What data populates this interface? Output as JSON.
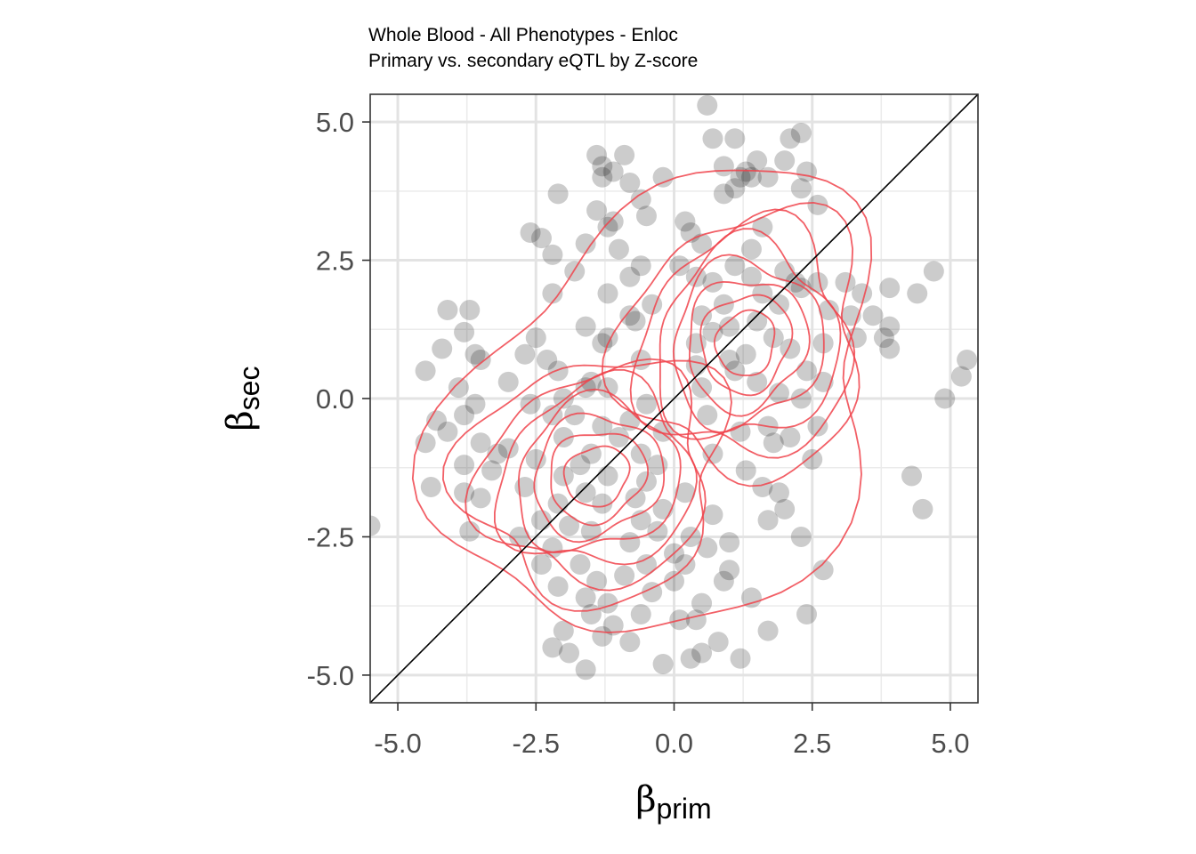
{
  "chart_data": {
    "type": "scatter",
    "title": "Whole Blood - All Phenotypes - Enloc",
    "subtitle": "Primary vs. secondary eQTL by Z-score",
    "xlabel": {
      "symbol": "β",
      "subscript": "prim"
    },
    "ylabel": {
      "symbol": "β",
      "subscript": "sec"
    },
    "xlim": [
      -5.5,
      5.5
    ],
    "ylim": [
      -5.5,
      5.5
    ],
    "xticks": [
      "-5.0",
      "-2.5",
      "0.0",
      "2.5",
      "5.0"
    ],
    "yticks": [
      "5.0",
      "2.5",
      "0.0",
      "-2.5",
      "-5.0"
    ],
    "grid": true,
    "reference_line": "y = x",
    "point_color": "#000000",
    "point_opacity": 0.2,
    "contour_color": "#f0434b",
    "density_contours": {
      "centers": [
        [
          -1.4,
          -1.4
        ],
        [
          1.3,
          1.0
        ]
      ],
      "levels": 7
    },
    "points": [
      [
        0.6,
        5.3
      ],
      [
        0.7,
        4.7
      ],
      [
        1.1,
        4.7
      ],
      [
        2.1,
        4.7
      ],
      [
        2.3,
        4.8
      ],
      [
        -1.4,
        4.4
      ],
      [
        -0.9,
        4.4
      ],
      [
        1.5,
        4.3
      ],
      [
        -1.3,
        4.2
      ],
      [
        -1.1,
        4.1
      ],
      [
        0.9,
        4.2
      ],
      [
        1.3,
        4.1
      ],
      [
        2.0,
        4.3
      ],
      [
        -1.3,
        4.0
      ],
      [
        -0.2,
        4.0
      ],
      [
        1.2,
        4.0
      ],
      [
        1.4,
        4.0
      ],
      [
        2.4,
        4.1
      ],
      [
        -0.8,
        3.9
      ],
      [
        1.1,
        3.8
      ],
      [
        1.7,
        4.0
      ],
      [
        -2.1,
        3.7
      ],
      [
        2.3,
        3.8
      ],
      [
        -0.6,
        3.6
      ],
      [
        -1.4,
        3.4
      ],
      [
        -0.5,
        3.3
      ],
      [
        0.9,
        3.7
      ],
      [
        2.6,
        3.5
      ],
      [
        -1.2,
        3.1
      ],
      [
        -1.1,
        3.2
      ],
      [
        0.2,
        3.2
      ],
      [
        0.3,
        3.0
      ],
      [
        1.6,
        3.1
      ],
      [
        -2.6,
        3.0
      ],
      [
        -2.4,
        2.9
      ],
      [
        -1.6,
        2.8
      ],
      [
        -1.0,
        2.7
      ],
      [
        0.5,
        2.8
      ],
      [
        1.4,
        2.7
      ],
      [
        -2.2,
        2.6
      ],
      [
        -0.6,
        2.4
      ],
      [
        0.1,
        2.4
      ],
      [
        1.1,
        2.4
      ],
      [
        -1.8,
        2.3
      ],
      [
        -0.8,
        2.2
      ],
      [
        0.4,
        2.2
      ],
      [
        0.7,
        2.1
      ],
      [
        1.4,
        2.2
      ],
      [
        2.0,
        2.3
      ],
      [
        2.2,
        2.1
      ],
      [
        2.6,
        2.1
      ],
      [
        3.1,
        2.1
      ],
      [
        4.7,
        2.3
      ],
      [
        -2.2,
        1.9
      ],
      [
        -1.2,
        1.9
      ],
      [
        1.6,
        1.9
      ],
      [
        2.3,
        2.0
      ],
      [
        3.4,
        1.9
      ],
      [
        3.9,
        2.0
      ],
      [
        4.4,
        1.9
      ],
      [
        -0.4,
        1.7
      ],
      [
        0.9,
        1.7
      ],
      [
        1.9,
        1.7
      ],
      [
        2.8,
        1.6
      ],
      [
        -4.1,
        1.6
      ],
      [
        -3.7,
        1.6
      ],
      [
        -0.8,
        1.5
      ],
      [
        0.5,
        1.5
      ],
      [
        1.5,
        1.4
      ],
      [
        3.2,
        1.5
      ],
      [
        3.6,
        1.5
      ],
      [
        -1.6,
        1.3
      ],
      [
        -0.7,
        1.4
      ],
      [
        1.0,
        1.3
      ],
      [
        3.9,
        1.3
      ],
      [
        -1.2,
        1.1
      ],
      [
        0.7,
        1.2
      ],
      [
        1.8,
        1.1
      ],
      [
        3.3,
        1.1
      ],
      [
        3.8,
        1.1
      ],
      [
        -3.8,
        1.2
      ],
      [
        -2.5,
        1.1
      ],
      [
        -1.3,
        1.0
      ],
      [
        0.4,
        1.0
      ],
      [
        2.7,
        1.0
      ],
      [
        -4.2,
        0.9
      ],
      [
        -3.6,
        0.8
      ],
      [
        -2.7,
        0.8
      ],
      [
        1.3,
        0.8
      ],
      [
        2.1,
        0.9
      ],
      [
        3.9,
        0.9
      ],
      [
        -3.5,
        0.7
      ],
      [
        -2.3,
        0.7
      ],
      [
        -0.6,
        0.7
      ],
      [
        1.0,
        0.7
      ],
      [
        5.3,
        0.7
      ],
      [
        -4.5,
        0.5
      ],
      [
        -2.1,
        0.5
      ],
      [
        0.4,
        0.6
      ],
      [
        1.1,
        0.5
      ],
      [
        2.4,
        0.5
      ],
      [
        -3.0,
        0.3
      ],
      [
        -1.5,
        0.3
      ],
      [
        1.5,
        0.3
      ],
      [
        2.7,
        0.3
      ],
      [
        -3.9,
        0.2
      ],
      [
        -2.0,
        0.0
      ],
      [
        -1.6,
        0.2
      ],
      [
        -1.2,
        0.2
      ],
      [
        0.5,
        0.2
      ],
      [
        1.9,
        0.1
      ],
      [
        -3.6,
        -0.1
      ],
      [
        -2.6,
        -0.1
      ],
      [
        -1.8,
        -0.3
      ],
      [
        -0.5,
        -0.1
      ],
      [
        2.3,
        0.0
      ],
      [
        4.9,
        0.0
      ],
      [
        -4.3,
        -0.4
      ],
      [
        -3.8,
        -0.3
      ],
      [
        -2.2,
        -0.3
      ],
      [
        -1.3,
        -0.5
      ],
      [
        -0.8,
        -0.4
      ],
      [
        0.6,
        -0.3
      ],
      [
        1.7,
        -0.5
      ],
      [
        2.6,
        -0.5
      ],
      [
        -4.1,
        -0.6
      ],
      [
        -3.5,
        -0.8
      ],
      [
        -2.0,
        -0.7
      ],
      [
        -1.0,
        -0.7
      ],
      [
        -0.2,
        -0.6
      ],
      [
        1.2,
        -0.6
      ],
      [
        2.1,
        -0.7
      ],
      [
        -4.5,
        -0.8
      ],
      [
        -3.0,
        -0.9
      ],
      [
        -1.5,
        -1.0
      ],
      [
        -0.6,
        -1.0
      ],
      [
        0.7,
        -1.0
      ],
      [
        1.8,
        -0.8
      ],
      [
        -3.8,
        -1.2
      ],
      [
        -2.5,
        -1.1
      ],
      [
        -1.7,
        -1.2
      ],
      [
        -0.3,
        -1.2
      ],
      [
        1.3,
        -1.3
      ],
      [
        2.5,
        -1.1
      ],
      [
        -3.3,
        -1.3
      ],
      [
        -2.0,
        -1.4
      ],
      [
        -1.2,
        -1.4
      ],
      [
        -0.5,
        -1.5
      ],
      [
        -4.4,
        -1.6
      ],
      [
        -2.7,
        -1.6
      ],
      [
        -1.6,
        -1.7
      ],
      [
        -0.7,
        -1.8
      ],
      [
        0.2,
        -1.7
      ],
      [
        1.6,
        -1.6
      ],
      [
        4.3,
        -1.4
      ],
      [
        -3.8,
        -1.7
      ],
      [
        -2.1,
        -1.9
      ],
      [
        -1.3,
        -1.9
      ],
      [
        -0.2,
        -2.0
      ],
      [
        1.9,
        -1.7
      ],
      [
        2.0,
        -2.0
      ],
      [
        -3.5,
        -1.8
      ],
      [
        -2.4,
        -2.2
      ],
      [
        -1.9,
        -2.3
      ],
      [
        -0.6,
        -2.2
      ],
      [
        0.7,
        -2.1
      ],
      [
        1.7,
        -2.2
      ],
      [
        4.5,
        -2.0
      ],
      [
        -1.5,
        -2.4
      ],
      [
        -0.3,
        -2.4
      ],
      [
        0.3,
        -2.5
      ],
      [
        1.0,
        -2.6
      ],
      [
        2.3,
        -2.5
      ],
      [
        -3.7,
        -2.4
      ],
      [
        -2.8,
        -2.5
      ],
      [
        -2.2,
        -2.7
      ],
      [
        -0.8,
        -2.6
      ],
      [
        0.0,
        -2.8
      ],
      [
        0.6,
        -2.7
      ],
      [
        -2.4,
        -3.0
      ],
      [
        -1.7,
        -3.0
      ],
      [
        -0.5,
        -3.0
      ],
      [
        0.2,
        -3.0
      ],
      [
        1.0,
        -3.1
      ],
      [
        2.7,
        -3.1
      ],
      [
        -1.4,
        -3.3
      ],
      [
        -0.9,
        -3.2
      ],
      [
        0.0,
        -3.3
      ],
      [
        0.9,
        -3.3
      ],
      [
        -2.1,
        -3.4
      ],
      [
        -1.6,
        -3.6
      ],
      [
        -0.4,
        -3.5
      ],
      [
        -1.2,
        -3.7
      ],
      [
        0.5,
        -3.7
      ],
      [
        1.4,
        -3.6
      ],
      [
        -1.5,
        -3.9
      ],
      [
        -0.6,
        -3.9
      ],
      [
        0.1,
        -4.0
      ],
      [
        -1.1,
        -4.1
      ],
      [
        0.4,
        -4.0
      ],
      [
        2.4,
        -3.9
      ],
      [
        -2.0,
        -4.2
      ],
      [
        -1.3,
        -4.3
      ],
      [
        -0.8,
        -4.4
      ],
      [
        0.8,
        -4.4
      ],
      [
        1.7,
        -4.2
      ],
      [
        -2.2,
        -4.5
      ],
      [
        -1.9,
        -4.6
      ],
      [
        0.3,
        -4.7
      ],
      [
        0.5,
        -4.6
      ],
      [
        1.2,
        -4.7
      ],
      [
        -1.6,
        -4.9
      ],
      [
        -0.2,
        -4.8
      ],
      [
        -5.5,
        -2.3
      ],
      [
        5.2,
        0.4
      ],
      [
        -3.2,
        -1.0
      ]
    ]
  }
}
